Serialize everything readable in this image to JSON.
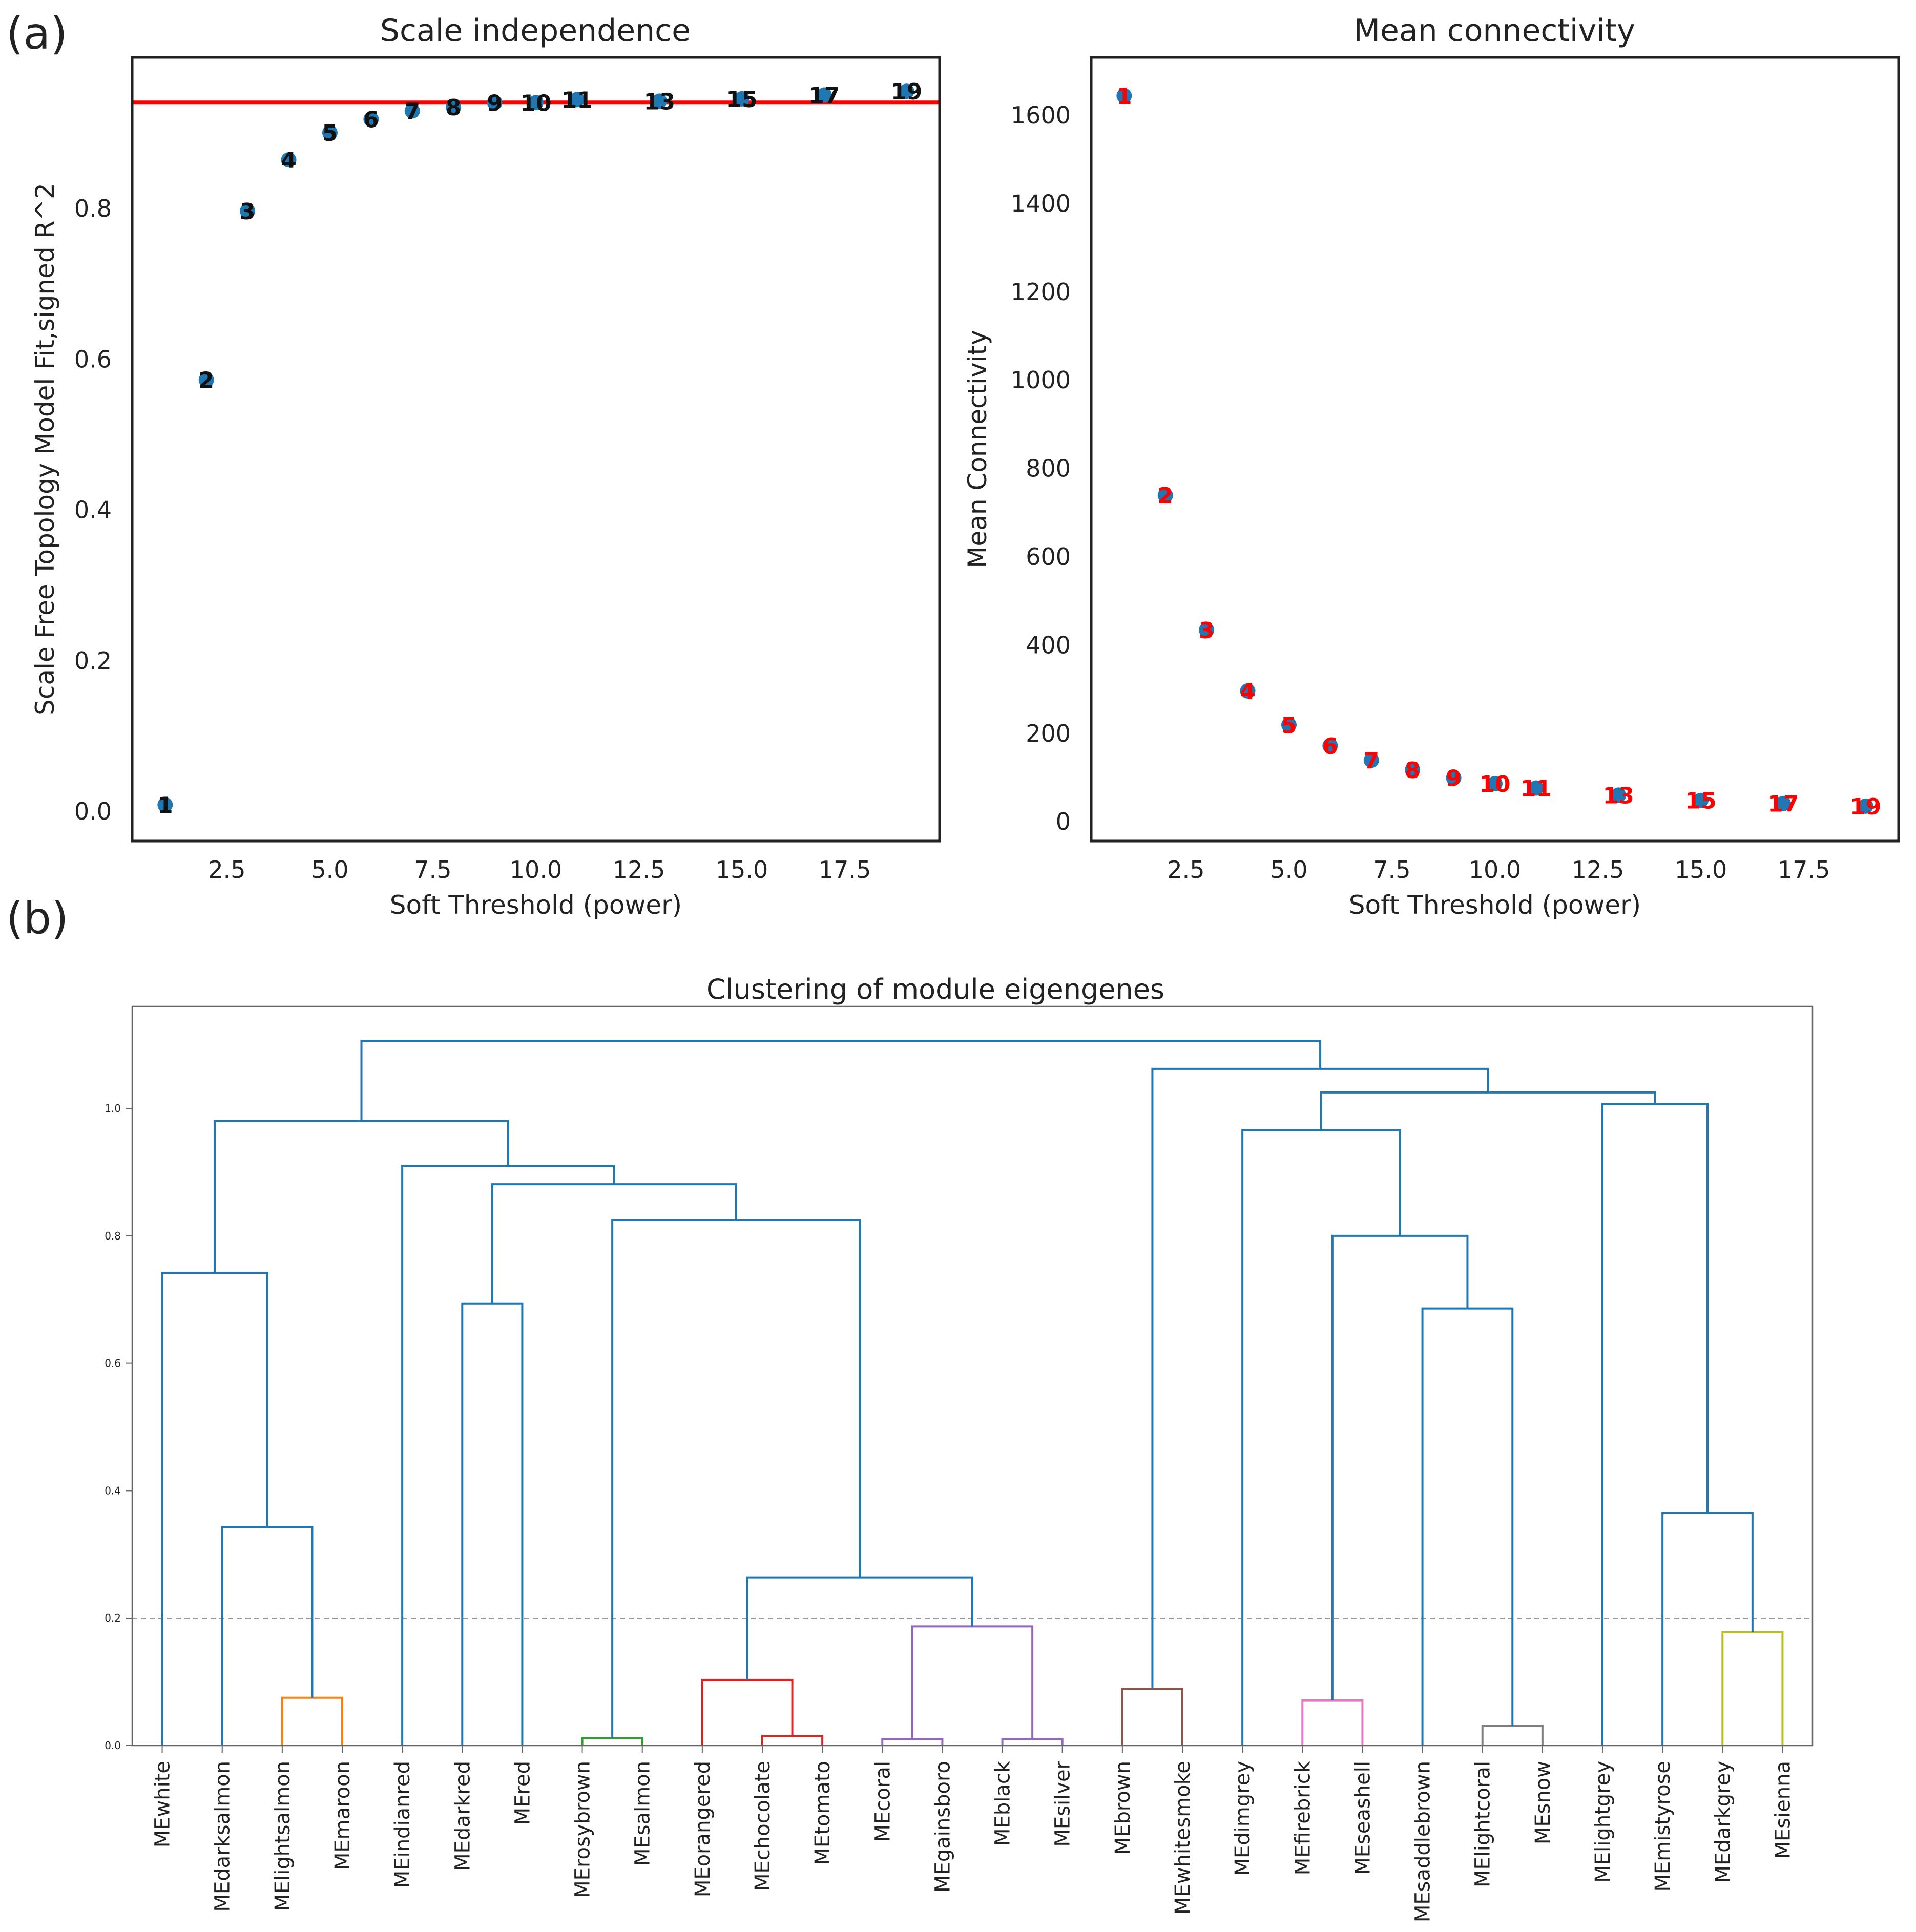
{
  "panel_a_label": "(a)",
  "panel_b_label": "(b)",
  "colors": {
    "point": "#1f77b4",
    "threshold_line": "#ff0000",
    "label_left": "#111111",
    "label_right": "#ff0000",
    "axis": "#222222",
    "cutoff": "#999999"
  },
  "chart_data": [
    {
      "id": "scale_independence",
      "type": "scatter",
      "title": "Scale independence",
      "xlabel": "Soft Threshold (power)",
      "ylabel": "Scale Free Topology Model Fit,signed R^2",
      "xlim": [
        0.2,
        19.8
      ],
      "ylim": [
        -0.04,
        1.0
      ],
      "xticks": [
        2.5,
        5.0,
        7.5,
        10.0,
        12.5,
        15.0,
        17.5
      ],
      "xtick_labels": [
        "2.5",
        "5.0",
        "7.5",
        "10.0",
        "12.5",
        "15.0",
        "17.5"
      ],
      "yticks": [
        0.0,
        0.2,
        0.4,
        0.6,
        0.8
      ],
      "ytick_labels": [
        "0.0",
        "0.2",
        "0.4",
        "0.6",
        "0.8"
      ],
      "threshold": 0.94,
      "points": [
        {
          "x": 1,
          "y": 0.008,
          "label": "1"
        },
        {
          "x": 2,
          "y": 0.572,
          "label": "2"
        },
        {
          "x": 3,
          "y": 0.796,
          "label": "3"
        },
        {
          "x": 4,
          "y": 0.864,
          "label": "4"
        },
        {
          "x": 5,
          "y": 0.9,
          "label": "5"
        },
        {
          "x": 6,
          "y": 0.918,
          "label": "6"
        },
        {
          "x": 7,
          "y": 0.929,
          "label": "7"
        },
        {
          "x": 8,
          "y": 0.934,
          "label": "8"
        },
        {
          "x": 9,
          "y": 0.94,
          "label": "9"
        },
        {
          "x": 10,
          "y": 0.94,
          "label": "10"
        },
        {
          "x": 11,
          "y": 0.944,
          "label": "11"
        },
        {
          "x": 13,
          "y": 0.942,
          "label": "13"
        },
        {
          "x": 15,
          "y": 0.945,
          "label": "15"
        },
        {
          "x": 17,
          "y": 0.95,
          "label": "17"
        },
        {
          "x": 19,
          "y": 0.955,
          "label": "19"
        }
      ]
    },
    {
      "id": "mean_connectivity",
      "type": "scatter",
      "title": "Mean connectivity",
      "xlabel": "Soft Threshold (power)",
      "ylabel": "Mean Connectivity",
      "xlim": [
        0.2,
        19.8
      ],
      "ylim": [
        -45,
        1730
      ],
      "xticks": [
        2.5,
        5.0,
        7.5,
        10.0,
        12.5,
        15.0,
        17.5
      ],
      "xtick_labels": [
        "2.5",
        "5.0",
        "7.5",
        "10.0",
        "12.5",
        "15.0",
        "17.5"
      ],
      "yticks": [
        0,
        200,
        400,
        600,
        800,
        1000,
        1200,
        1400,
        1600
      ],
      "ytick_labels": [
        "0",
        "200",
        "400",
        "600",
        "800",
        "1000",
        "1200",
        "1400",
        "1600"
      ],
      "points": [
        {
          "x": 1,
          "y": 1643,
          "label": "1"
        },
        {
          "x": 2,
          "y": 738,
          "label": "2"
        },
        {
          "x": 3,
          "y": 433,
          "label": "3"
        },
        {
          "x": 4,
          "y": 295,
          "label": "4"
        },
        {
          "x": 5,
          "y": 218,
          "label": "5"
        },
        {
          "x": 6,
          "y": 171,
          "label": "6"
        },
        {
          "x": 7,
          "y": 138,
          "label": "7"
        },
        {
          "x": 8,
          "y": 116,
          "label": "8"
        },
        {
          "x": 9,
          "y": 98,
          "label": "9"
        },
        {
          "x": 10,
          "y": 85,
          "label": "10"
        },
        {
          "x": 11,
          "y": 75,
          "label": "11"
        },
        {
          "x": 13,
          "y": 59,
          "label": "13"
        },
        {
          "x": 15,
          "y": 47,
          "label": "15"
        },
        {
          "x": 17,
          "y": 40,
          "label": "17"
        },
        {
          "x": 19,
          "y": 34,
          "label": "19"
        }
      ]
    },
    {
      "id": "module_dendrogram",
      "type": "dendrogram",
      "title": "Clustering of module eigengenes",
      "ylim": [
        0,
        1.16
      ],
      "yticks": [
        0.0,
        0.2,
        0.4,
        0.6,
        0.8,
        1.0
      ],
      "ytick_labels": [
        "0.0",
        "0.2",
        "0.4",
        "0.6",
        "0.8",
        "1.0"
      ],
      "cut_height": 0.2,
      "leaves": [
        "MEwhite",
        "MEdarksalmon",
        "MElightsalmon",
        "MEmaroon",
        "MEindianred",
        "MEdarkred",
        "MEred",
        "MErosybrown",
        "MEsalmon",
        "MEorangered",
        "MEchocolate",
        "MEtomato",
        "MEcoral",
        "MEgainsboro",
        "MEblack",
        "MEsilver",
        "MEbrown",
        "MEwhitesmoke",
        "MEdimgrey",
        "MEfirebrick",
        "MEseashell",
        "MEsaddlebrown",
        "MElightcoral",
        "MEsnow",
        "MElightgrey",
        "MEmistyrose",
        "MEdarkgrey",
        "MEsienna"
      ],
      "merges": [
        {
          "a": "L2",
          "b": "L3",
          "h": 0.075,
          "color": "#ff7f0e"
        },
        {
          "a": "L1",
          "b": "N0",
          "h": 0.343,
          "color": "#1f77b4"
        },
        {
          "a": "L0",
          "b": "N1",
          "h": 0.742,
          "color": "#1f77b4"
        },
        {
          "a": "L5",
          "b": "L6",
          "h": 0.694,
          "color": "#1f77b4"
        },
        {
          "a": "L7",
          "b": "L8",
          "h": 0.012,
          "color": "#2ca02c"
        },
        {
          "a": "L10",
          "b": "L11",
          "h": 0.015,
          "color": "#d62728"
        },
        {
          "a": "L9",
          "b": "N5",
          "h": 0.103,
          "color": "#d62728"
        },
        {
          "a": "L12",
          "b": "L13",
          "h": 0.01,
          "color": "#9467bd"
        },
        {
          "a": "L14",
          "b": "L15",
          "h": 0.01,
          "color": "#9467bd"
        },
        {
          "a": "N7",
          "b": "N8",
          "h": 0.187,
          "color": "#9467bd"
        },
        {
          "a": "N6",
          "b": "N9",
          "h": 0.264,
          "color": "#1f77b4"
        },
        {
          "a": "N4",
          "b": "N10",
          "h": 0.825,
          "color": "#1f77b4"
        },
        {
          "a": "N3",
          "b": "N11",
          "h": 0.881,
          "color": "#1f77b4"
        },
        {
          "a": "L4",
          "b": "N12",
          "h": 0.91,
          "color": "#1f77b4"
        },
        {
          "a": "N2",
          "b": "N13",
          "h": 0.98,
          "color": "#1f77b4"
        },
        {
          "a": "L16",
          "b": "L17",
          "h": 0.089,
          "color": "#8c564b"
        },
        {
          "a": "L19",
          "b": "L20",
          "h": 0.071,
          "color": "#e377c2"
        },
        {
          "a": "L22",
          "b": "L23",
          "h": 0.031,
          "color": "#7f7f7f"
        },
        {
          "a": "L21",
          "b": "N17",
          "h": 0.686,
          "color": "#1f77b4"
        },
        {
          "a": "N16",
          "b": "N18",
          "h": 0.8,
          "color": "#1f77b4"
        },
        {
          "a": "L18",
          "b": "N19",
          "h": 0.966,
          "color": "#1f77b4"
        },
        {
          "a": "L26",
          "b": "L27",
          "h": 0.178,
          "color": "#bcbd22"
        },
        {
          "a": "L25",
          "b": "N21",
          "h": 0.365,
          "color": "#1f77b4"
        },
        {
          "a": "L24",
          "b": "N22",
          "h": 1.007,
          "color": "#1f77b4"
        },
        {
          "a": "N20",
          "b": "N23",
          "h": 1.025,
          "color": "#1f77b4"
        },
        {
          "a": "N15",
          "b": "N24",
          "h": 1.062,
          "color": "#1f77b4"
        },
        {
          "a": "N14",
          "b": "N25",
          "h": 1.106,
          "color": "#1f77b4"
        }
      ]
    }
  ]
}
